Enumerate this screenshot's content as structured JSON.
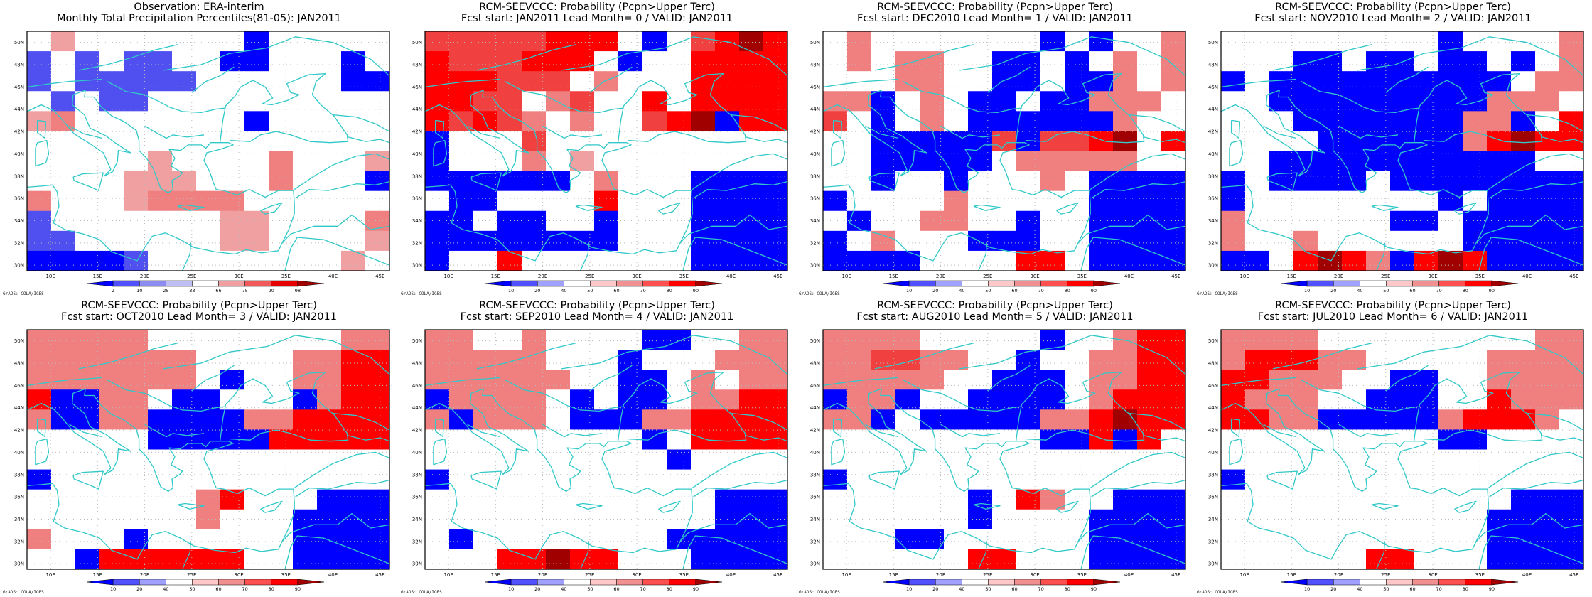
{
  "credit": "GrADS: COLA/IGES",
  "lon_labels": [
    "10E",
    "15E",
    "20E",
    "25E",
    "30E",
    "35E",
    "40E",
    "45E"
  ],
  "lat_labels": [
    "30N",
    "32N",
    "34N",
    "36N",
    "38N",
    "40N",
    "42N",
    "44N",
    "46N",
    "48N",
    "50N"
  ],
  "legends": {
    "percentile": {
      "ticks": [
        "2",
        "10",
        "25",
        "33",
        "66",
        "75",
        "90",
        "98"
      ],
      "colors": [
        "#0000ff",
        "#5050ff",
        "#8c8cf0",
        "#bebef5",
        "#ffffff",
        "#f0a0a0",
        "#f05a5a",
        "#e60000",
        "#a00000"
      ]
    },
    "probability": {
      "ticks": [
        "10",
        "20",
        "40",
        "50",
        "60",
        "70",
        "80",
        "90"
      ],
      "colors": [
        "#0000ff",
        "#5050ff",
        "#a0a0ff",
        "#ffffff",
        "#ffc8c8",
        "#f09090",
        "#ff5050",
        "#ff0000",
        "#a00000"
      ]
    }
  },
  "colors": {
    "blue_strong": "#0000ff",
    "blue_mid": "#5050f0",
    "blue_light": "#a0a0ff",
    "white": "#ffffff",
    "pink_light": "#f0a0a0",
    "pink": "#f08080",
    "red": "#f04040",
    "red_strong": "#ff0000",
    "dark_red": "#a00000",
    "coast": "#30c8c8",
    "grid_dots": "#bbbbbb"
  },
  "panels": [
    {
      "id": "obs",
      "title1": "Observation: ERA-interim",
      "title2": "Monthly Total Precipitation Percentiles(81-05): JAN2011",
      "legend": "percentile",
      "cells": [
        "W P W W W W W W W B W W W W W",
        "b W b W b b W W B B W W W B W",
        "b W b b b b b W W W W W W B B",
        "W b W b b W W W W W W W W W W",
        "P p W W W W W W W B W W W W W",
        "W W W W W W W W W W W W W W W",
        "W W W W W P W W W W p W W W P",
        "W W W W P P P W W W p W W W B",
        "p W W W P p p p p W W W W W W",
        "b W W W W W W W P P W W W W p",
        "b b W W W W W W P P W W W W P",
        "B B B B b W W W W W W W W P W"
      ]
    },
    {
      "id": "lead0",
      "title1": "RCM-SEEVCCC: Probability (Pcpn>Upper Terc)",
      "title2": "Fcst start: JAN2011  Lead Month= 0 / VALID: JAN2011",
      "legend": "probability",
      "cells": [
        "r r r r r R R R W B W r R D R",
        "R r r r R R R W B W W R R R R",
        "R R R r r r W p W W W R R R R",
        "R R r r W p r W W R W R R R R",
        "R r R r p W p W W r R D B R R",
        "B W W W r W W W W W W W W W W",
        "B W W W p W P W W W W W W W W",
        "B B B B B B W p W W W B B B B",
        "W B B W W W W R W W W B B B B",
        "B B W B B W W B W W W B B B B",
        "B B B B B B B B W W W B B B B",
        "B W W R W W W W W W W B B B B"
      ]
    },
    {
      "id": "lead1",
      "title1": "RCM-SEEVCCC: Probability (Pcpn>Upper Terc)",
      "title2": "Fcst start: DEC2010  Lead Month= 1 / VALID: JAN2011",
      "legend": "probability",
      "cells": [
        "W p W W W W W W W B W B W W p",
        "W p W p p W W B B W B W p W p",
        "W W W p p W W B B W B B p W p",
        "p p B W p W B B W B B p p p W",
        "r W B W p W B B B B B B p W W",
        "W W B B B B B r B r r R D W R",
        "W W B B B B B W p p p p p W W",
        "W W B W W B W W W p W B B B B",
        "B W W W W p W W W W W B B B B",
        "W B W W p p W W B W W B B B B",
        "B W p W W W B B B W W B B B B",
        "B B B B W W W W R R W B B B B"
      ]
    },
    {
      "id": "lead2",
      "title1": "RCM-SEEVCCC: Probability (Pcpn>Upper Terc)",
      "title2": "Fcst start: NOV2010  Lead Month= 2 / VALID: JAN2011",
      "legend": "probability",
      "cells": [
        "W W W W W W W W W B W W W W p",
        "W W W B B W B B W B B W B W p",
        "B W B B B B B B B B B B W p p",
        "W W B B B B B B B B B p p p W",
        "W W W B B B B B B B p p B W R",
        "W W W W B B B B B B p R D R R",
        "W W B B B B B B B B B B B W W",
        "B W B B B B W B B B B B B B B",
        "B W W W W W W W W B W B B B B",
        "p W W W W W W B B W B B B B B",
        "p W W p W W W W W W B B B B B",
        "B B W R D R p B R D R B B B B"
      ]
    },
    {
      "id": "lead3",
      "title1": "RCM-SEEVCCC: Probability (Pcpn>Upper Terc)",
      "title2": "Fcst start: OCT2010  Lead Month= 3 / VALID: JAN2011",
      "legend": "probability",
      "cells": [
        "p p p p p W W W W W W W W p p",
        "p p p p p p p W W W W p p R R",
        "p p p p p p p W B W W p p R R",
        "R B B p p W B B W W W B p R R",
        "p B B p p B B B B p p R R R R",
        "W W W W W B B B B B R R R R R",
        "W W W W W W W W W W W W W W W",
        "B W W W W W W W W W W W W W W",
        "W W W W W W W p R W W W B B B",
        "W W W W W W W p W W W B B B B",
        "p W W W B W W W W W W B B B B",
        "W W B R R R R R R W W B B B B"
      ]
    },
    {
      "id": "lead4",
      "title1": "RCM-SEEVCCC: Probability (Pcpn>Upper Terc)",
      "title2": "Fcst start: SEP2010  Lead Month= 4 / VALID: JAN2011",
      "legend": "probability",
      "cells": [
        "p p W W p W W W W B B W W p p",
        "p p p p p W W W B W W W p p p",
        "p p p p p p W W B B W p W p p",
        "B p p p p W B W B B W p p R R",
        "p B p p p W B B B p p R R R R",
        "W W W W W W W W W B W R R R R",
        "W W W W W W W W W W B W W W W",
        "B W W W W W W W W W W W W W W",
        "W W W W W W W W W W W W B B B",
        "W W W W W W W W W W W W B B B",
        "W B W W W W W W W W B B B B B",
        "W W W R R D R R W W W B B B B"
      ]
    },
    {
      "id": "lead5",
      "title1": "RCM-SEEVCCC: Probability (Pcpn>Upper Terc)",
      "title2": "Fcst start: AUG2010  Lead Month= 5 / VALID: JAN2011",
      "legend": "probability",
      "cells": [
        "p p p p W W W W W B W W p R R",
        "p p r r p p W W B W W p p R R",
        "p p p p p W W B B B W p p R R",
        "B p p B W W B B B B W p R R R",
        "p p B W B B B B B p p R D R R",
        "W W W W W W W W W B B R B R W",
        "W W W W W W W W W W W W W W W",
        "B W W W W W W W W W W W W W W",
        "W W W W W W B W R p W W B B B",
        "W W W W W W B W W W W B B B B",
        "W W W B B W W W W W W B B B B",
        "W W W W W W R R W W W B B B B"
      ]
    },
    {
      "id": "lead6",
      "title1": "RCM-SEEVCCC: Probability (Pcpn>Upper Terc)",
      "title2": "Fcst start: JUL2010  Lead Month= 6 / VALID: JAN2011",
      "legend": "probability",
      "cells": [
        "p p p p W W W W W W W W W p p",
        "p R R R p p W W W W W p p p p",
        "R R p p p W W B B W W p p p p",
        "R p p p W W B B B W W R p p p",
        "R R p p B B B B B p R R R p W",
        "W W W W W W W W W B B W W W W",
        "W W W W W W W W W W W W W W W",
        "B W W W W W W W W W W W W W W",
        "W W W W W W W W W W W W B B B",
        "W W W W W W W W W W W B B B B",
        "W W W W W W W W W W W B B B B",
        "W W W W W W R R W W W B B B B"
      ]
    }
  ]
}
